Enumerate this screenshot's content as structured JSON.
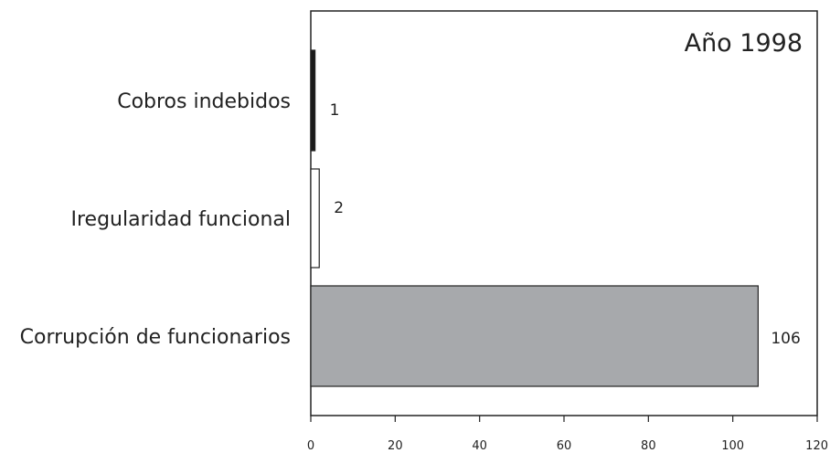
{
  "chart_data": {
    "type": "bar",
    "orientation": "horizontal",
    "title": "Año 1998",
    "categories": [
      "Cobros indebidos",
      "Iregularidad funcional",
      "Corrupción de funcionarios"
    ],
    "values": [
      1,
      2,
      106
    ],
    "value_labels": [
      "1",
      "2",
      "106"
    ],
    "colors": [
      "#1a1a1a",
      "#ffffff",
      "#a7a9ac"
    ],
    "xlim": [
      0,
      120
    ],
    "xticks": [
      0,
      20,
      40,
      60,
      80,
      100,
      120
    ],
    "xtick_labels": [
      "0",
      "20",
      "40",
      "60",
      "80",
      "100",
      "120"
    ],
    "xlabel": "",
    "ylabel": "",
    "grid": false,
    "legend": "none"
  }
}
